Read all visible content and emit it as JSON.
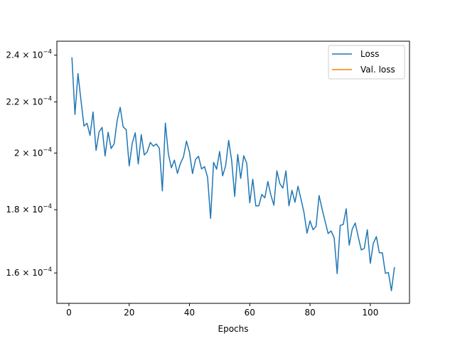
{
  "chart_data": {
    "type": "line",
    "title": "",
    "xlabel": "Epochs",
    "ylabel": "",
    "xlim": [
      -4,
      113
    ],
    "ylim": [
      0.0001512,
      0.0002463
    ],
    "yscale": "log",
    "grid": false,
    "legend_position": "top-right",
    "x_ticks": [
      0,
      20,
      40,
      60,
      80,
      100
    ],
    "x_tick_labels": [
      "0",
      "20",
      "40",
      "60",
      "80",
      "100"
    ],
    "y_ticks": [
      0.00016,
      0.00018,
      0.0002,
      0.00022,
      0.00024
    ],
    "y_tick_labels": [
      {
        "mantissa": "1.6",
        "base": "10",
        "exp": "−4"
      },
      {
        "mantissa": "1.8",
        "base": "10",
        "exp": "−4"
      },
      {
        "mantissa": "2",
        "base": "10",
        "exp": "−4"
      },
      {
        "mantissa": "2.2",
        "base": "10",
        "exp": "−4"
      },
      {
        "mantissa": "2.4",
        "base": "10",
        "exp": "−4"
      }
    ],
    "series": [
      {
        "name": "Loss",
        "color": "#1f77b4",
        "x": [
          1,
          2,
          3,
          4,
          5,
          6,
          7,
          8,
          9,
          10,
          11,
          12,
          13,
          14,
          15,
          16,
          17,
          18,
          19,
          20,
          21,
          22,
          23,
          24,
          25,
          26,
          27,
          28,
          29,
          30,
          31,
          32,
          33,
          34,
          35,
          36,
          37,
          38,
          39,
          40,
          41,
          42,
          43,
          44,
          45,
          46,
          47,
          48,
          49,
          50,
          51,
          52,
          53,
          54,
          55,
          56,
          57,
          58,
          59,
          60,
          61,
          62,
          63,
          64,
          65,
          66,
          67,
          68,
          69,
          70,
          71,
          72,
          73,
          74,
          75,
          76,
          77,
          78,
          79,
          80,
          81,
          82,
          83,
          84,
          85,
          86,
          87,
          88,
          89,
          90,
          91,
          92,
          93,
          94,
          95,
          96,
          97,
          98,
          99,
          100,
          101,
          102,
          103,
          104,
          105,
          106,
          107,
          108
        ],
        "y": [
          0.0002388,
          0.0002149,
          0.0002319,
          0.0002206,
          0.0002103,
          0.0002114,
          0.0002067,
          0.0002159,
          0.000201,
          0.000208,
          0.0002098,
          0.0001989,
          0.0002079,
          0.0002017,
          0.0002035,
          0.0002125,
          0.0002178,
          0.00021,
          0.0002089,
          0.0001953,
          0.0002036,
          0.0002077,
          0.000196,
          0.000207,
          0.0001993,
          0.0002005,
          0.000204,
          0.0002026,
          0.0002034,
          0.0002018,
          0.0001864,
          0.0002115,
          0.0001996,
          0.0001946,
          0.0001974,
          0.0001926,
          0.0001962,
          0.0001986,
          0.0002045,
          0.0002003,
          0.0001925,
          0.0001976,
          0.0001988,
          0.0001942,
          0.000195,
          0.0001912,
          0.0001771,
          0.0001966,
          0.0001941,
          0.0002006,
          0.0001917,
          0.0001954,
          0.0002048,
          0.0001972,
          0.0001845,
          0.0001995,
          0.0001908,
          0.000199,
          0.0001962,
          0.0001823,
          0.0001905,
          0.0001813,
          0.0001813,
          0.0001852,
          0.000184,
          0.0001897,
          0.000185,
          0.0001815,
          0.0001935,
          0.0001889,
          0.0001874,
          0.0001935,
          0.0001813,
          0.0001866,
          0.0001825,
          0.000188,
          0.0001836,
          0.000179,
          0.0001723,
          0.0001763,
          0.0001734,
          0.0001745,
          0.0001848,
          0.0001802,
          0.0001761,
          0.0001722,
          0.000173,
          0.0001708,
          0.0001598,
          0.0001748,
          0.0001751,
          0.0001803,
          0.0001685,
          0.0001736,
          0.0001756,
          0.0001711,
          0.000167,
          0.0001675,
          0.0001734,
          0.0001629,
          0.0001691,
          0.0001712,
          0.0001661,
          0.0001661,
          0.0001599,
          0.0001601,
          0.0001548,
          0.0001616
        ]
      },
      {
        "name": "Val. loss",
        "color": "#ff7f0e",
        "x": [],
        "y": []
      }
    ]
  }
}
